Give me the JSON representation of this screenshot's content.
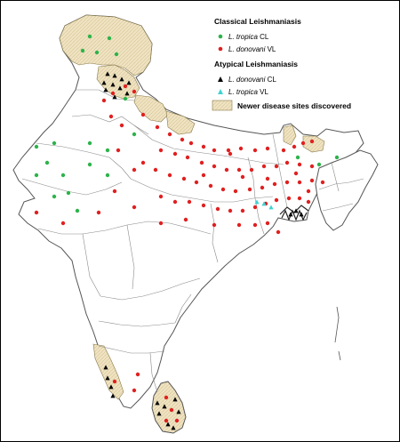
{
  "legend": {
    "classical_header": "Classical Leishmaniasis",
    "classical_items": [
      {
        "species": "L. tropica",
        "form": " CL",
        "symbol": "green-dot",
        "color": "#2db34a"
      },
      {
        "species": "L. donovani",
        "form": " VL",
        "symbol": "red-dot",
        "color": "#e02020"
      }
    ],
    "atypical_header": "Atypical Leishmaniasis",
    "atypical_items": [
      {
        "species": "L. donovani",
        "form": " CL",
        "symbol": "black-triangle",
        "color": "#000000"
      },
      {
        "species": "L. tropica",
        "form": " VL",
        "symbol": "cyan-triangle",
        "color": "#3fd3d3"
      }
    ],
    "newer_sites_label": "Newer disease sites discovered",
    "newer_sites_fill": "#efe3c2"
  },
  "colors": {
    "border": "#555555",
    "state_lines": "#888888",
    "hatch_fill": "#efe3c2"
  }
}
